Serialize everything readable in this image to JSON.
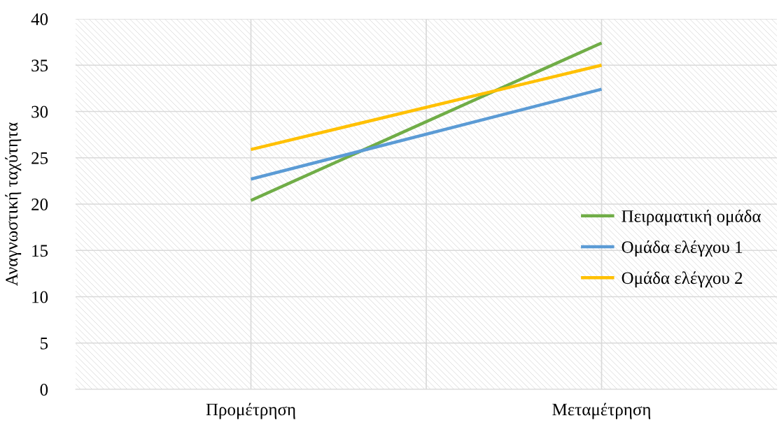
{
  "chart_data": {
    "type": "line",
    "ylabel": "Αναγνωστική ταχύτητα",
    "categories": [
      "Προμέτρηση",
      "Μεταμέτρηση"
    ],
    "series": [
      {
        "name": "Πειραματική ομάδα",
        "color": "#70ad47",
        "values": [
          20.4,
          37.4
        ]
      },
      {
        "name": "Ομάδα ελέγχου 1",
        "color": "#5b9bd5",
        "values": [
          22.7,
          32.4
        ]
      },
      {
        "name": "Ομάδα ελέγχου 2",
        "color": "#ffc000",
        "values": [
          25.9,
          35.0
        ]
      }
    ],
    "ylim": [
      0,
      40
    ],
    "yticks": [
      0,
      5,
      10,
      15,
      20,
      25,
      30,
      35,
      40
    ],
    "grid": true,
    "legend": "right",
    "marker": "none",
    "line_style": "solid"
  }
}
